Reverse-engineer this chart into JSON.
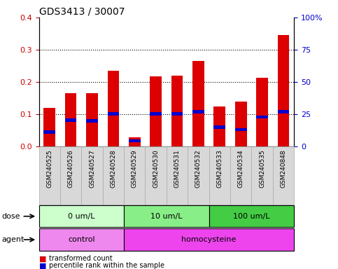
{
  "title": "GDS3413 / 30007",
  "samples": [
    "GSM240525",
    "GSM240526",
    "GSM240527",
    "GSM240528",
    "GSM240529",
    "GSM240530",
    "GSM240531",
    "GSM240532",
    "GSM240533",
    "GSM240534",
    "GSM240535",
    "GSM240848"
  ],
  "red_values": [
    0.12,
    0.165,
    0.165,
    0.235,
    0.028,
    0.218,
    0.22,
    0.265,
    0.125,
    0.14,
    0.213,
    0.345
  ],
  "blue_values": [
    0.045,
    0.082,
    0.08,
    0.102,
    0.018,
    0.102,
    0.101,
    0.108,
    0.06,
    0.053,
    0.092,
    0.108
  ],
  "ylim": [
    0,
    0.4
  ],
  "yticks_left": [
    0,
    0.1,
    0.2,
    0.3,
    0.4
  ],
  "yticks_right": [
    0,
    25,
    50,
    75,
    100
  ],
  "bar_color": "#dd0000",
  "blue_color": "#0000cc",
  "tick_label_color_left": "#cc0000",
  "tick_label_color_right": "#0000cc",
  "dose_groups": [
    {
      "label": "0 um/L",
      "start": 0,
      "end": 4,
      "color": "#ccffcc"
    },
    {
      "label": "10 um/L",
      "start": 4,
      "end": 8,
      "color": "#88ee88"
    },
    {
      "label": "100 um/L",
      "start": 8,
      "end": 12,
      "color": "#44cc44"
    }
  ],
  "agent_groups": [
    {
      "label": "control",
      "start": 0,
      "end": 4,
      "color": "#ee88ee"
    },
    {
      "label": "homocysteine",
      "start": 4,
      "end": 12,
      "color": "#ee44ee"
    }
  ],
  "dose_label": "dose",
  "agent_label": "agent",
  "legend_items": [
    {
      "color": "#dd0000",
      "label": "transformed count"
    },
    {
      "color": "#0000cc",
      "label": "percentile rank within the sample"
    }
  ],
  "bar_width": 0.55,
  "background_color": "#ffffff"
}
